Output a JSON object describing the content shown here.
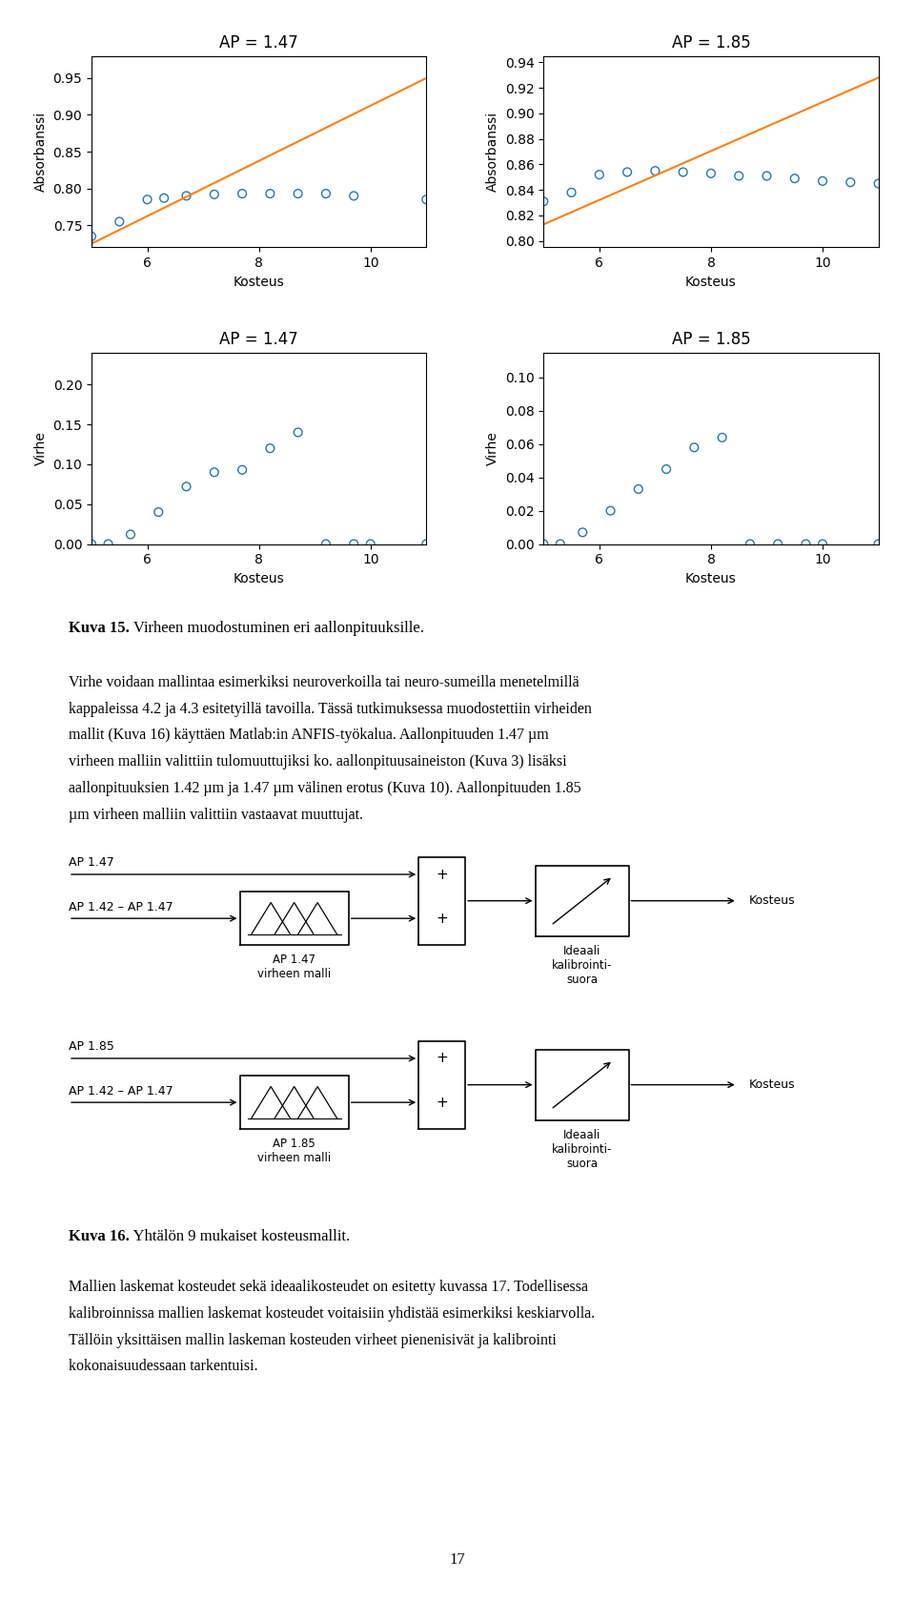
{
  "chart_data": [
    {
      "type": "scatter",
      "title": "AP = 1.47",
      "x_label": "Kosteus",
      "y_label": "Absorbanssi",
      "xlim": [
        5,
        11
      ],
      "xticks": [
        6,
        8,
        10
      ],
      "ylim": [
        0.72,
        0.98
      ],
      "yticks": [
        0.75,
        {
          "value": 0.8,
          "label": "0.80"
        },
        0.85,
        {
          "value": 0.9,
          "label": "0.90"
        },
        0.95
      ],
      "series": [
        {
          "type": "scatter",
          "marker": "o",
          "x": [
            5,
            5.5,
            6,
            6.3,
            6.7,
            7.2,
            7.7,
            8.2,
            8.7,
            9.2,
            9.7,
            11
          ],
          "values": [
            0.735,
            0.755,
            0.785,
            0.787,
            0.79,
            0.792,
            0.793,
            0.793,
            0.793,
            0.793,
            0.79,
            0.785
          ]
        },
        {
          "type": "line",
          "x": [
            5,
            11
          ],
          "values": [
            0.725,
            0.95
          ]
        }
      ]
    },
    {
      "type": "scatter",
      "title": "AP = 1.85",
      "x_label": "Kosteus",
      "y_label": "Absorbanssi",
      "xlim": [
        5,
        11
      ],
      "xticks": [
        6,
        8,
        10
      ],
      "ylim": [
        0.795,
        0.945
      ],
      "yticks": [
        {
          "value": 0.8,
          "label": "0.80"
        },
        0.82,
        0.84,
        0.86,
        0.88,
        {
          "value": 0.9,
          "label": "0.90"
        },
        0.92,
        0.94
      ],
      "series": [
        {
          "type": "scatter",
          "marker": "o",
          "x": [
            5,
            5.5,
            6,
            6.5,
            7,
            7.5,
            8,
            8.5,
            9,
            9.5,
            10,
            10.5,
            11
          ],
          "values": [
            0.831,
            0.838,
            0.852,
            0.854,
            0.855,
            0.854,
            0.853,
            0.851,
            0.851,
            0.849,
            0.847,
            0.846,
            0.845
          ]
        },
        {
          "type": "line",
          "x": [
            5,
            11
          ],
          "values": [
            0.813,
            0.928
          ]
        }
      ]
    },
    {
      "type": "scatter",
      "title": "AP = 1.47",
      "x_label": "Kosteus",
      "y_label": "Virhe",
      "xlim": [
        5,
        11
      ],
      "xticks": [
        6,
        8,
        10
      ],
      "ylim": [
        0,
        0.24
      ],
      "yticks": [
        {
          "value": 0,
          "label": "0.00"
        },
        0.05,
        {
          "value": 0.1,
          "label": "0.10"
        },
        0.15,
        {
          "value": 0.2,
          "label": "0.20"
        }
      ],
      "series": [
        {
          "type": "scatter",
          "marker": "o",
          "x": [
            5,
            5.3,
            5.7,
            6.2,
            6.7,
            7.2,
            7.7,
            8.2,
            8.7,
            9.2,
            9.7,
            10,
            11
          ],
          "values": [
            0.0,
            0.0,
            0.012,
            0.04,
            0.072,
            0.09,
            0.093,
            0.12,
            0.14,
            0.0,
            0.0,
            0.0,
            0.0
          ]
        }
      ]
    },
    {
      "type": "scatter",
      "title": "AP = 1.85",
      "x_label": "Kosteus",
      "y_label": "Virhe",
      "xlim": [
        5,
        11
      ],
      "xticks": [
        6,
        8,
        10
      ],
      "ylim": [
        0,
        0.115
      ],
      "yticks": [
        {
          "value": 0,
          "label": "0.00"
        },
        0.02,
        0.04,
        0.06,
        0.08,
        {
          "value": 0.1,
          "label": "0.10"
        }
      ],
      "series": [
        {
          "type": "scatter",
          "marker": "o",
          "x": [
            5,
            5.3,
            5.7,
            6.2,
            6.7,
            7.2,
            7.7,
            8.2,
            8.7,
            9.2,
            9.7,
            10,
            11
          ],
          "values": [
            0.0,
            0.0,
            0.007,
            0.02,
            0.033,
            0.045,
            0.058,
            0.064,
            0.0,
            0.0,
            0.0,
            0.0,
            0.0
          ]
        }
      ]
    }
  ],
  "captions": [
    {
      "bold": "Kuva 15.",
      "text": " Virheen muodostuminen eri aallonpituuksille."
    },
    {
      "bold": "Kuva 16.",
      "text": " Yhtälön 9 mukaiset kosteusmallit."
    }
  ],
  "paragraphs": [
    [
      "Virhe voidaan mallintaa esimerkiksi neuroverkoilla tai neuro-sumeilla menetelmillä",
      "kappaleissa 4.2 ja 4.3 esitetyillä tavoilla. Tässä tutkimuksessa muodostettiin virheiden",
      "mallit (Kuva 16) käyttäen Matlab:in ANFIS-työkalua. Aallonpituuden 1.47 µm",
      "virheen malliin valittiin tulomuuttujiksi ko. aallonpituusaineiston (Kuva 3) lisäksi",
      "aallonpituuksien 1.42 µm ja 1.47 µm välinen erotus (Kuva 10). Aallonpituuden 1.85",
      "µm virheen malliin valittiin vastaavat muuttujat."
    ],
    [
      "Mallien laskemat kosteudet sekä ideaalikosteudet on esitetty kuvassa 17. Todellisessa",
      "kalibroinnissa mallien laskemat kosteudet voitaisiin yhdistää esimerkiksi keskiarvolla.",
      "Tällöin yksittäisen mallin laskeman kosteuden virheet pienenisivät ja kalibrointi",
      "kokonaisuudessaan tarkentuisi."
    ]
  ],
  "diagrams": [
    {
      "input_top": "AP 1.47",
      "input_bottom": "AP 1.42 – AP 1.47",
      "model_label": "AP 1.47\nvirheen malli",
      "sum_signs": [
        "+",
        "+"
      ],
      "ideal_label": [
        "Ideaali",
        "kalibrointi-",
        "suora"
      ],
      "output_label": "Kosteus"
    },
    {
      "input_top": "AP 1.85",
      "input_bottom": "AP 1.42 – AP 1.47",
      "model_label": "AP 1.85\nvirheen malli",
      "sum_signs": [
        "+",
        "+"
      ],
      "ideal_label": [
        "Ideaali",
        "kalibrointi-",
        "suora"
      ],
      "output_label": "Kosteus"
    }
  ],
  "page_number": "17"
}
